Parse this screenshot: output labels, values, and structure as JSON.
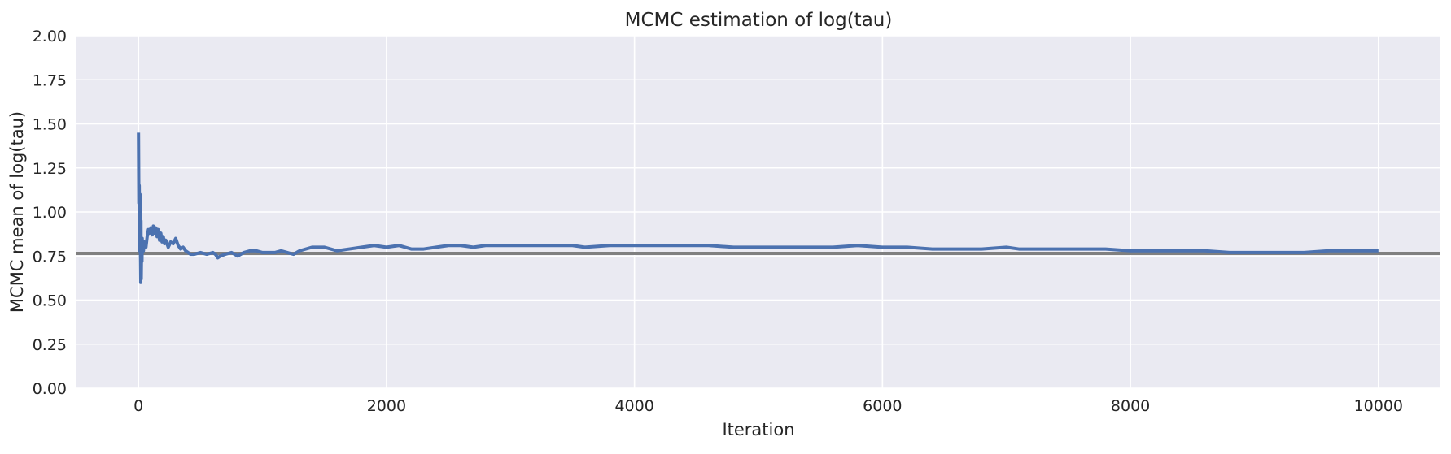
{
  "chart_data": {
    "type": "line",
    "title": "MCMC estimation of log(tau)",
    "xlabel": "Iteration",
    "ylabel": "MCMC mean of log(tau)",
    "xlim": [
      -500,
      10500
    ],
    "ylim": [
      0,
      2
    ],
    "xticks": [
      0,
      2000,
      4000,
      6000,
      8000,
      10000
    ],
    "yticks": [
      0.0,
      0.25,
      0.5,
      0.75,
      1.0,
      1.25,
      1.5,
      1.75,
      2.0
    ],
    "ytick_labels": [
      "0.00",
      "0.25",
      "0.50",
      "0.75",
      "1.00",
      "1.25",
      "1.50",
      "1.75",
      "2.00"
    ],
    "grid": true,
    "style": "seaborn darkgrid",
    "colors": {
      "plot_bg": "#eaeaf2",
      "grid": "#ffffff",
      "series": "#4c72b0",
      "reference": "#808080"
    },
    "reference_line": {
      "y": 0.765
    },
    "series": [
      {
        "x": [
          0,
          3,
          6,
          9,
          12,
          15,
          18,
          20,
          22,
          25,
          28,
          30,
          33,
          36,
          40,
          45,
          50,
          55,
          60,
          70,
          80,
          90,
          100,
          110,
          120,
          130,
          140,
          150,
          160,
          170,
          180,
          190,
          200,
          210,
          220,
          240,
          260,
          280,
          300,
          320,
          340,
          360,
          380,
          400,
          420,
          450,
          500,
          550,
          600,
          620,
          640,
          660,
          700,
          750,
          800,
          850,
          900,
          950,
          1000,
          1050,
          1100,
          1150,
          1200,
          1250,
          1300,
          1400,
          1500,
          1550,
          1600,
          1700,
          1800,
          1900,
          2000,
          2100,
          2200,
          2300,
          2400,
          2500,
          2600,
          2700,
          2800,
          2900,
          3000,
          3200,
          3400,
          3500,
          3600,
          3800,
          4000,
          4200,
          4400,
          4600,
          4800,
          5000,
          5200,
          5400,
          5600,
          5800,
          6000,
          6200,
          6400,
          6600,
          6800,
          7000,
          7100,
          7200,
          7400,
          7600,
          7800,
          8000,
          8200,
          8400,
          8600,
          8800,
          9000,
          9200,
          9400,
          9600,
          9800,
          10000
        ],
        "y": [
          1.45,
          1.05,
          1.15,
          0.78,
          1.1,
          0.85,
          0.6,
          0.95,
          0.62,
          0.8,
          0.72,
          0.85,
          0.77,
          0.82,
          0.78,
          0.83,
          0.8,
          0.82,
          0.8,
          0.86,
          0.9,
          0.88,
          0.91,
          0.87,
          0.92,
          0.88,
          0.91,
          0.86,
          0.9,
          0.84,
          0.88,
          0.83,
          0.86,
          0.82,
          0.84,
          0.8,
          0.83,
          0.82,
          0.85,
          0.81,
          0.79,
          0.8,
          0.78,
          0.77,
          0.76,
          0.76,
          0.77,
          0.76,
          0.77,
          0.76,
          0.74,
          0.75,
          0.76,
          0.77,
          0.75,
          0.77,
          0.78,
          0.78,
          0.77,
          0.77,
          0.77,
          0.78,
          0.77,
          0.76,
          0.78,
          0.8,
          0.8,
          0.79,
          0.78,
          0.79,
          0.8,
          0.81,
          0.8,
          0.81,
          0.79,
          0.79,
          0.8,
          0.81,
          0.81,
          0.8,
          0.81,
          0.81,
          0.81,
          0.81,
          0.81,
          0.81,
          0.8,
          0.81,
          0.81,
          0.81,
          0.81,
          0.81,
          0.8,
          0.8,
          0.8,
          0.8,
          0.8,
          0.81,
          0.8,
          0.8,
          0.79,
          0.79,
          0.79,
          0.8,
          0.79,
          0.79,
          0.79,
          0.79,
          0.79,
          0.78,
          0.78,
          0.78,
          0.78,
          0.77,
          0.77,
          0.77,
          0.77,
          0.78,
          0.78,
          0.78
        ]
      }
    ]
  }
}
